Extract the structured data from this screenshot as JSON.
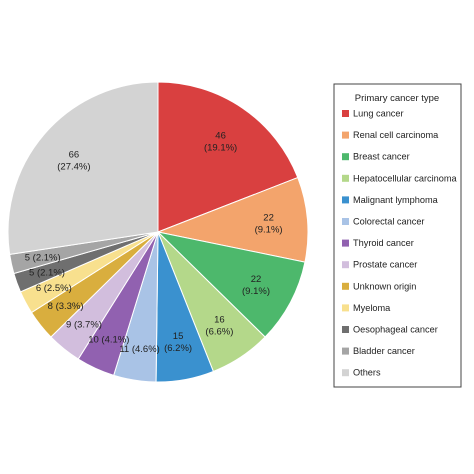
{
  "chart_data": {
    "type": "pie",
    "title": "",
    "legend_title": "Primary cancer type",
    "legend_position": "right",
    "start_angle_deg": 0,
    "direction": "clockwise",
    "slices": [
      {
        "label": "Lung cancer",
        "value": 46,
        "percent_label": "(19.1%)",
        "color": "#d94040"
      },
      {
        "label": "Renal cell carcinoma",
        "value": 22,
        "percent_label": "(9.1%)",
        "color": "#f3a46c"
      },
      {
        "label": "Breast cancer",
        "value": 22,
        "percent_label": "(9.1%)",
        "color": "#4db86c"
      },
      {
        "label": "Hepatocellular carcinoma",
        "value": 16,
        "percent_label": "(6.6%)",
        "color": "#b4d88a"
      },
      {
        "label": "Malignant lymphoma",
        "value": 15,
        "percent_label": "(6.2%)",
        "color": "#3a91cf"
      },
      {
        "label": "Colorectal cancer",
        "value": 11,
        "percent_label": "(4.6%)",
        "color": "#a9c3e6"
      },
      {
        "label": "Thyroid cancer",
        "value": 10,
        "percent_label": "(4.1%)",
        "color": "#9161b0"
      },
      {
        "label": "Prostate cancer",
        "value": 9,
        "percent_label": "(3.7%)",
        "color": "#d2bedd"
      },
      {
        "label": "Unknown origin",
        "value": 8,
        "percent_label": "(3.3%)",
        "color": "#d9ae3e"
      },
      {
        "label": "Myeloma",
        "value": 6,
        "percent_label": "(2.5%)",
        "color": "#f8e08e"
      },
      {
        "label": "Oesophageal cancer",
        "value": 5,
        "percent_label": "(2.1%)",
        "color": "#6f6f6f"
      },
      {
        "label": "Bladder cancer",
        "value": 5,
        "percent_label": "(2.1%)",
        "color": "#a5a5a5"
      },
      {
        "label": "Others",
        "value": 66,
        "percent_label": "(27.4%)",
        "color": "#d3d3d3"
      }
    ]
  }
}
